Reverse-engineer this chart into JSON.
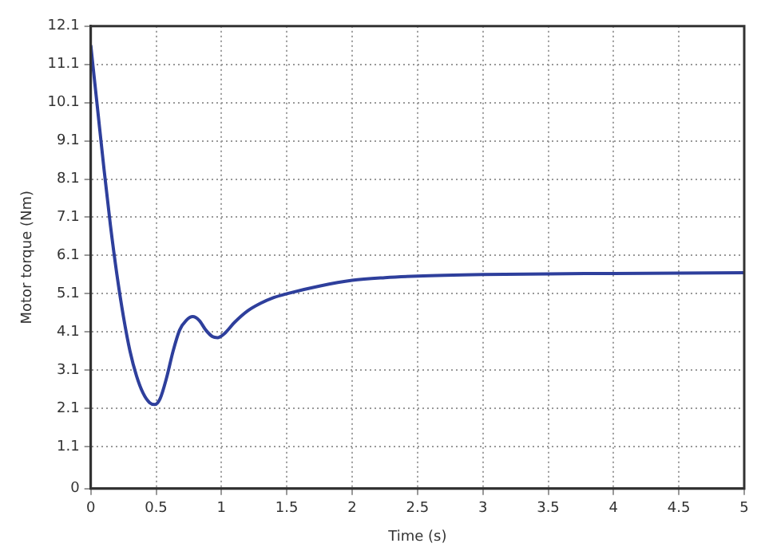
{
  "chart_data": {
    "type": "line",
    "xlabel": "Time (s)",
    "ylabel": "Motor torque (Nm)",
    "xlim": [
      0,
      5
    ],
    "xticks": [
      0,
      0.5,
      1,
      1.5,
      2,
      2.5,
      3,
      3.5,
      4,
      4.5,
      5
    ],
    "ylim": [
      0,
      12.1
    ],
    "yticks": [
      0,
      1.1,
      2.1,
      3.1,
      4.1,
      5.1,
      6.1,
      7.1,
      8.1,
      9.1,
      10.1,
      11.1,
      12.1
    ],
    "grid": true,
    "line_style": "solid",
    "marker": "none",
    "series": [
      {
        "color": "#2e3f9c",
        "x": [
          0,
          0.05,
          0.1,
          0.15,
          0.2,
          0.25,
          0.3,
          0.35,
          0.4,
          0.45,
          0.49,
          0.53,
          0.58,
          0.63,
          0.68,
          0.73,
          0.78,
          0.83,
          0.88,
          0.93,
          0.97,
          1.02,
          1.1,
          1.2,
          1.3,
          1.4,
          1.5,
          1.75,
          2,
          2.25,
          2.5,
          3,
          3.5,
          4,
          4.5,
          5
        ],
        "values": [
          11.6,
          10.0,
          8.4,
          6.9,
          5.6,
          4.5,
          3.6,
          2.95,
          2.5,
          2.25,
          2.2,
          2.35,
          2.9,
          3.6,
          4.15,
          4.4,
          4.5,
          4.4,
          4.15,
          3.98,
          3.95,
          4.05,
          4.35,
          4.65,
          4.85,
          5.0,
          5.1,
          5.3,
          5.45,
          5.52,
          5.56,
          5.6,
          5.62,
          5.63,
          5.64,
          5.65
        ]
      }
    ]
  }
}
